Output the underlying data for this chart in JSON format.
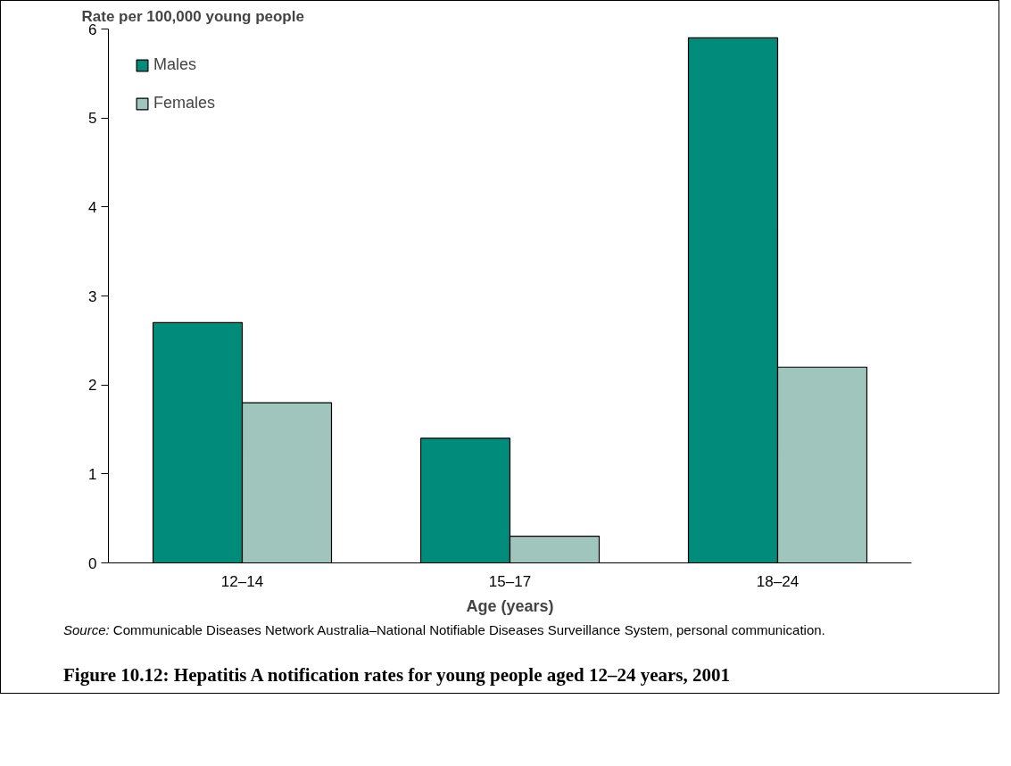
{
  "chart_data": {
    "type": "bar",
    "title": "Figure 10.12: Hepatitis A notification rates for young people aged 12–24 years, 2001",
    "ylabel": "Rate per 100,000 young people",
    "xlabel": "Age (years)",
    "categories": [
      "12–14",
      "15–17",
      "18–24"
    ],
    "series": [
      {
        "name": "Males",
        "color": "#008b7a",
        "values": [
          2.7,
          1.4,
          5.9
        ]
      },
      {
        "name": "Females",
        "color": "#9fc5bd",
        "values": [
          1.8,
          0.3,
          2.2
        ]
      }
    ],
    "ylim": [
      0,
      6
    ],
    "yticks": [
      0,
      1,
      2,
      3,
      4,
      5,
      6
    ],
    "grid": false,
    "legend": "top left",
    "annotations": [
      "Source: Communicable Diseases Network Australia–National Notifiable Diseases Surveillance System, personal communication."
    ]
  }
}
